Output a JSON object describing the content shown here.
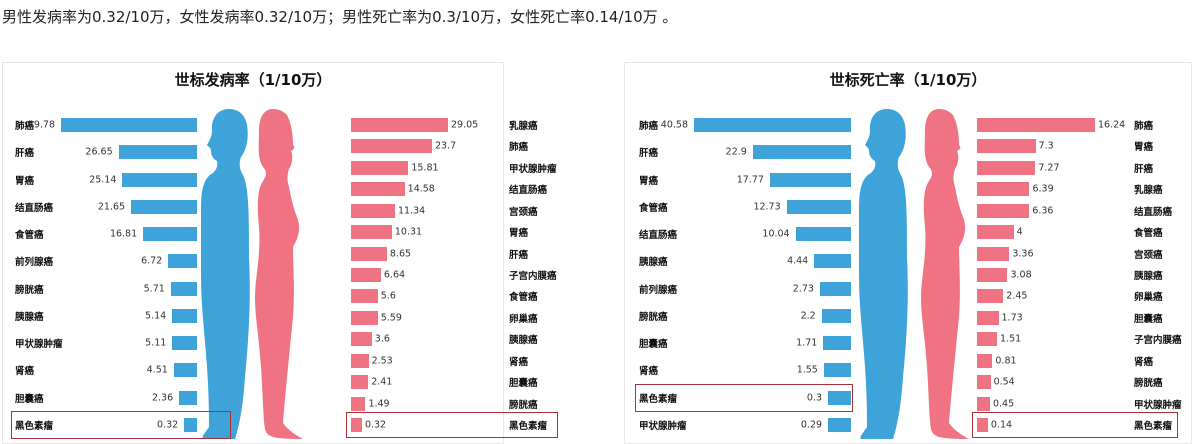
{
  "headline": "男性发病率为0.32/10万，女性发病率0.32/10万；男性死亡率为0.3/10万，女性死亡率0.14/10万 。",
  "colors": {
    "male": "#3ea3d8",
    "female": "#f07383",
    "highlight": "#a83238"
  },
  "chart_data": [
    {
      "type": "bar",
      "title": "世标发病率（1/10万）",
      "highlight": "黑色素瘤",
      "male": {
        "categories": [
          "肺癌",
          "肝癌",
          "胃癌",
          "结直肠癌",
          "食管癌",
          "前列腺癌",
          "膀胱癌",
          "胰腺癌",
          "甲状腺肿瘤",
          "肾癌",
          "胆囊癌",
          "黑色素瘤"
        ],
        "values": [
          49.78,
          26.65,
          25.14,
          21.65,
          16.81,
          6.72,
          5.71,
          5.14,
          5.11,
          4.51,
          2.36,
          0.32
        ]
      },
      "female": {
        "categories": [
          "乳腺癌",
          "肺癌",
          "甲状腺肿瘤",
          "结直肠癌",
          "宫颈癌",
          "胃癌",
          "肝癌",
          "子宫内膜癌",
          "食管癌",
          "卵巢癌",
          "胰腺癌",
          "肾癌",
          "胆囊癌",
          "膀胱癌",
          "黑色素瘤"
        ],
        "values": [
          29.05,
          23.7,
          15.81,
          14.58,
          11.34,
          10.31,
          8.65,
          6.64,
          5.6,
          5.59,
          3.6,
          2.53,
          2.41,
          1.49,
          0.32
        ]
      }
    },
    {
      "type": "bar",
      "title": "世标死亡率（1/10万）",
      "highlight": "黑色素瘤",
      "male": {
        "categories": [
          "肺癌",
          "肝癌",
          "胃癌",
          "食管癌",
          "结直肠癌",
          "胰腺癌",
          "前列腺癌",
          "膀胱癌",
          "胆囊癌",
          "肾癌",
          "黑色素瘤",
          "甲状腺肿瘤"
        ],
        "values": [
          40.58,
          22.9,
          17.77,
          12.73,
          10.04,
          4.44,
          2.73,
          2.2,
          1.71,
          1.55,
          0.3,
          0.29
        ]
      },
      "female": {
        "categories": [
          "肺癌",
          "胃癌",
          "肝癌",
          "乳腺癌",
          "结直肠癌",
          "食管癌",
          "宫颈癌",
          "胰腺癌",
          "卵巢癌",
          "胆囊癌",
          "子宫内膜癌",
          "肾癌",
          "膀胱癌",
          "甲状腺肿瘤",
          "黑色素瘤"
        ],
        "values": [
          16.24,
          7.3,
          7.27,
          6.39,
          6.36,
          4,
          3.36,
          3.08,
          2.45,
          1.73,
          1.51,
          0.81,
          0.54,
          0.45,
          0.14
        ]
      }
    }
  ]
}
